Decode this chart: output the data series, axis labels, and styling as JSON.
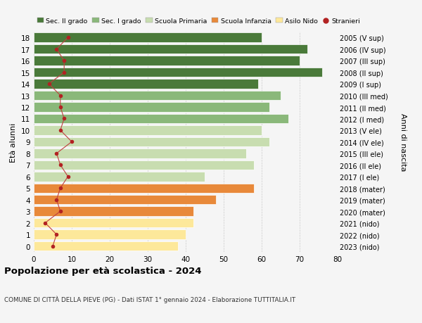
{
  "ages": [
    0,
    1,
    2,
    3,
    4,
    5,
    6,
    7,
    8,
    9,
    10,
    11,
    12,
    13,
    14,
    15,
    16,
    17,
    18
  ],
  "bar_values": [
    38,
    40,
    42,
    42,
    48,
    58,
    45,
    58,
    56,
    62,
    60,
    67,
    62,
    65,
    59,
    76,
    70,
    72,
    60
  ],
  "bar_colors": [
    "#fde89a",
    "#fde89a",
    "#fde89a",
    "#e8893a",
    "#e8893a",
    "#e8893a",
    "#c8ddb0",
    "#c8ddb0",
    "#c8ddb0",
    "#c8ddb0",
    "#c8ddb0",
    "#8ab87a",
    "#8ab87a",
    "#8ab87a",
    "#4a7a3a",
    "#4a7a3a",
    "#4a7a3a",
    "#4a7a3a",
    "#4a7a3a"
  ],
  "stranieri_values": [
    5,
    6,
    3,
    7,
    6,
    7,
    9,
    7,
    6,
    10,
    7,
    8,
    7,
    7,
    4,
    8,
    8,
    6,
    9
  ],
  "right_labels": [
    "2023 (nido)",
    "2022 (nido)",
    "2021 (nido)",
    "2020 (mater)",
    "2019 (mater)",
    "2018 (mater)",
    "2017 (I ele)",
    "2016 (II ele)",
    "2015 (III ele)",
    "2014 (IV ele)",
    "2013 (V ele)",
    "2012 (I med)",
    "2011 (II med)",
    "2010 (III med)",
    "2009 (I sup)",
    "2008 (II sup)",
    "2007 (III sup)",
    "2006 (IV sup)",
    "2005 (V sup)"
  ],
  "legend_labels": [
    "Sec. II grado",
    "Sec. I grado",
    "Scuola Primaria",
    "Scuola Infanzia",
    "Asilo Nido",
    "Stranieri"
  ],
  "legend_colors": [
    "#4a7a3a",
    "#8ab87a",
    "#c8ddb0",
    "#e8893a",
    "#fde89a",
    "#b22222"
  ],
  "title": "Popolazione per età scolastica - 2024",
  "subtitle": "COMUNE DI CITTÀ DELLA PIEVE (PG) - Dati ISTAT 1° gennaio 2024 - Elaborazione TUTTITALIA.IT",
  "ylabel_left": "Età alunni",
  "ylabel_right": "Anni di nascita",
  "xlim": [
    0,
    80
  ],
  "xticks": [
    0,
    10,
    20,
    30,
    40,
    50,
    60,
    70,
    80
  ],
  "bg_color": "#f5f5f5",
  "stranieri_color": "#b22222",
  "stranieri_line_color": "#c04040"
}
